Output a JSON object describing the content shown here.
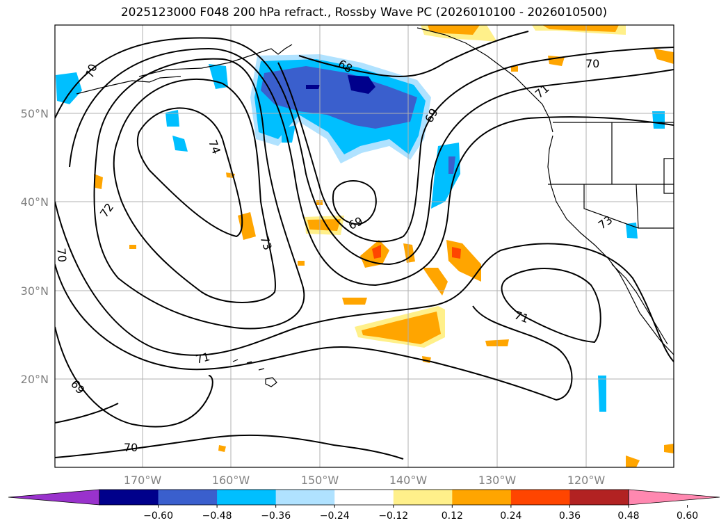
{
  "title": "2025123000 F048 200 hPa refract., Rossby Wave PC (2026010100 - 2026010500)",
  "lat_labels": [
    "20°N",
    "30°N",
    "40°N",
    "50°N"
  ],
  "lon_labels": [
    "170°W",
    "160°W",
    "150°W",
    "140°W",
    "130°W",
    "120°W"
  ],
  "contour_labels": {
    "c70_nw": "70",
    "c74": "74",
    "c72": "72",
    "c70_w": "70",
    "c73_mid": "73",
    "c68": "68",
    "c69_ne": "69",
    "c69_low": "69",
    "c71_ne": "71",
    "c70_ne": "70",
    "c73_coast": "73",
    "c71_se": "71",
    "c71_s": "71",
    "c69_sw": "69",
    "c70_bottom": "70"
  },
  "colorbar": {
    "labels": [
      "−0.60",
      "−0.48",
      "−0.36",
      "−0.24",
      "−0.12",
      "0.12",
      "0.24",
      "0.36",
      "0.48",
      "0.60"
    ],
    "colors": {
      "under": "#9932cc",
      "bins": [
        "#00008b",
        "#3a5fcd",
        "#00bfff",
        "#b0e2ff",
        "#ffffff",
        "#fff08a",
        "#ffa500",
        "#ff4500",
        "#b22222"
      ],
      "over": "#ff88b0"
    }
  },
  "field_colors": {
    "neg_strong": "#00008b",
    "neg_mid": "#3a5fcd",
    "neg_light": "#00bfff",
    "neg_pale": "#b0e2ff",
    "pos_pale": "#fff08a",
    "pos_mid": "#ffa500",
    "pos_strong": "#ff4500"
  }
}
